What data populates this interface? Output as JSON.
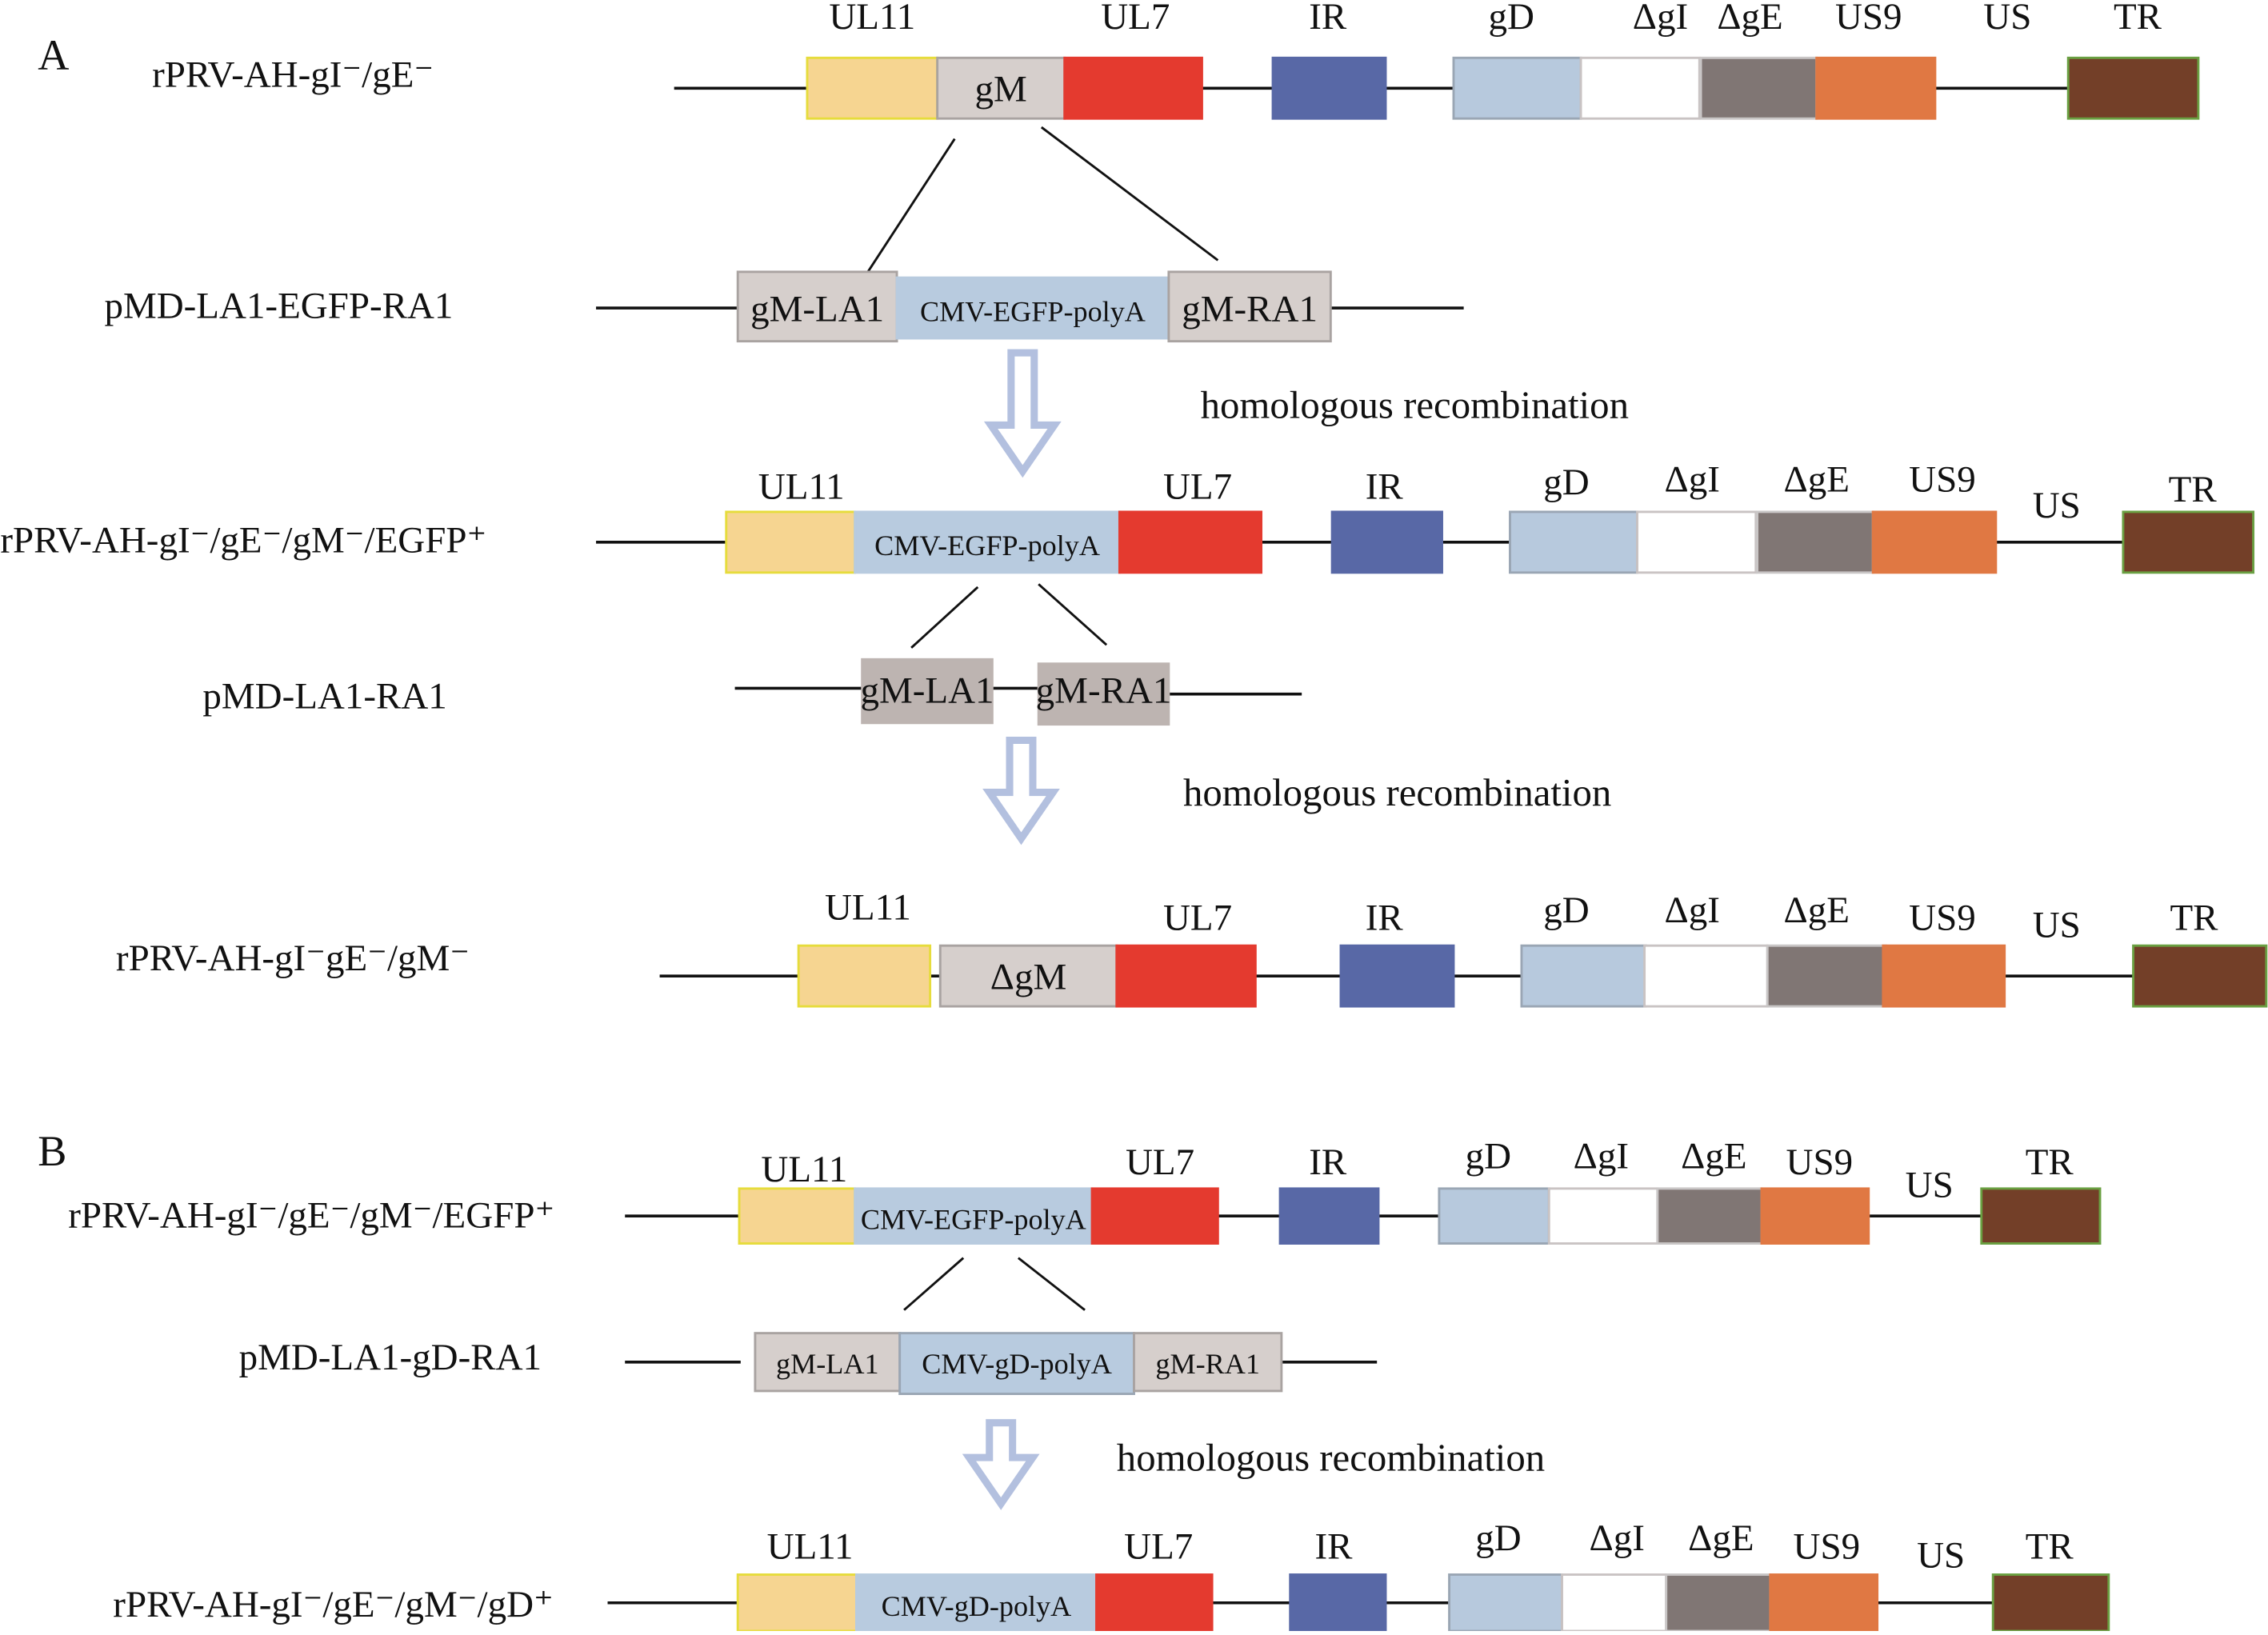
{
  "figure": {
    "panels": [
      "A",
      "B"
    ],
    "colors": {
      "UL11": "#f6d591",
      "UL11_border": "#e6dc3c",
      "gM": "#d6cfcc",
      "gM_border": "#a9a3a1",
      "UL7": "#e43a2f",
      "IR": "#5868a6",
      "gD": "#b7c9dd",
      "gD_border": "#9aa6b4",
      "dgI": "#ffffff",
      "dgI_border": "#c9c3c3",
      "dgE": "#807674",
      "US9": "#e07843",
      "TR": "#733f28",
      "TR_border": "#6aa042",
      "cassette": "#b8cbdf",
      "arm": "#d6cfcc",
      "arm_dark": "#bdb4b1",
      "arrow": "#b3c0df",
      "line": "#111111"
    },
    "recombination_note": "homologous recombination",
    "rows": {
      "a1": {
        "name": "rPRV-AH-gI⁻/gE⁻",
        "genes": [
          "UL11",
          "gM",
          "UL7",
          "IR",
          "gD",
          "ΔgI",
          "ΔgE",
          "US9",
          "US",
          "TR"
        ]
      },
      "a2": {
        "name": "pMD-LA1-EGFP-RA1",
        "segments": [
          "gM-LA1",
          "CMV-EGFP-polyA",
          "gM-RA1"
        ]
      },
      "a3": {
        "name": "rPRV-AH-gI⁻/gE⁻/gM⁻/EGFP⁺",
        "genes": [
          "UL11",
          "CMV-EGFP-polyA",
          "UL7",
          "IR",
          "gD",
          "ΔgI",
          "ΔgE",
          "US9",
          "US",
          "TR"
        ]
      },
      "a4": {
        "name": "pMD-LA1-RA1",
        "segments": [
          "gM-LA1",
          "gM-RA1"
        ]
      },
      "a5": {
        "name": "rPRV-AH-gI⁻gE⁻/gM⁻",
        "genes": [
          "UL11",
          "ΔgM",
          "UL7",
          "IR",
          "gD",
          "ΔgI",
          "ΔgE",
          "US9",
          "US",
          "TR"
        ]
      },
      "b1": {
        "name": "rPRV-AH-gI⁻/gE⁻/gM⁻/EGFP⁺",
        "genes": [
          "UL11",
          "CMV-EGFP-polyA",
          "UL7",
          "IR",
          "gD",
          "ΔgI",
          "ΔgE",
          "US9",
          "US",
          "TR"
        ]
      },
      "b2": {
        "name": "pMD-LA1-gD-RA1",
        "segments": [
          "gM-LA1",
          "CMV-gD-polyA",
          "gM-RA1"
        ]
      },
      "b3": {
        "name": "rPRV-AH-gI⁻/gE⁻/gM⁻/gD⁺",
        "genes": [
          "UL11",
          "CMV-gD-polyA",
          "UL7",
          "IR",
          "gD",
          "ΔgI",
          "ΔgE",
          "US9",
          "US",
          "TR"
        ]
      }
    }
  }
}
